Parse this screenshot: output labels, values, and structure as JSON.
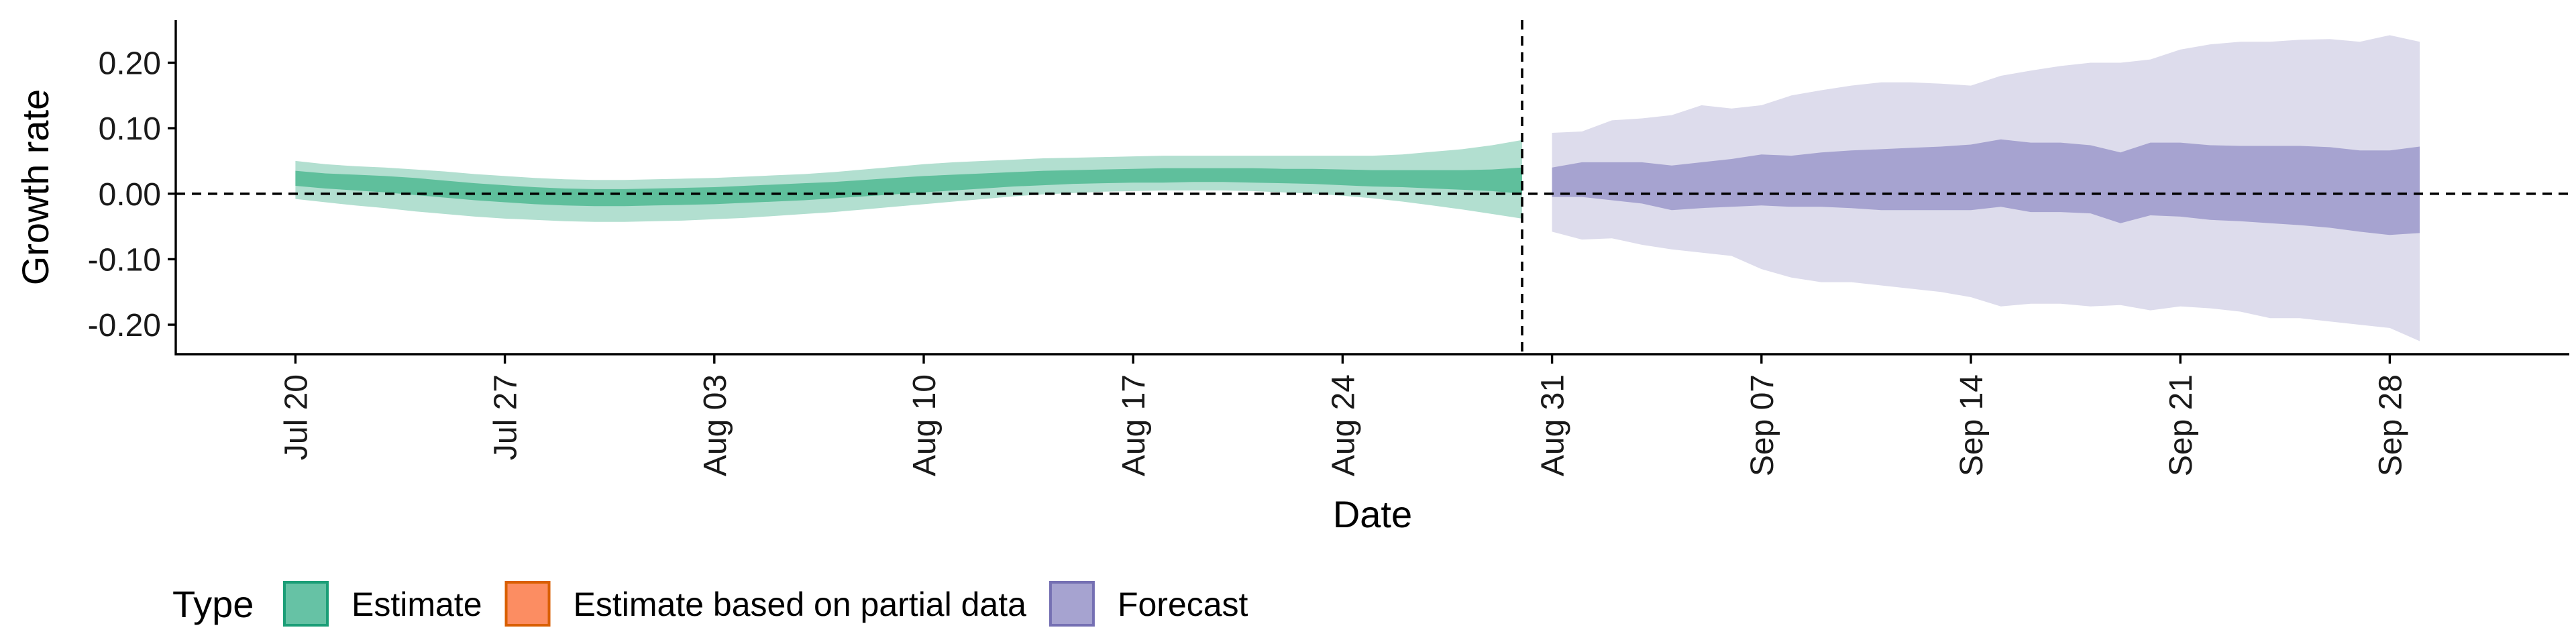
{
  "chart_data": {
    "type": "area",
    "xlabel": "Date",
    "ylabel": "Growth rate",
    "ylim": [
      -0.245,
      0.265
    ],
    "x_ticks": [
      "Jul 20",
      "Jul 27",
      "Aug 03",
      "Aug 10",
      "Aug 17",
      "Aug 24",
      "Aug 31",
      "Sep 07",
      "Sep 14",
      "Sep 21",
      "Sep 28"
    ],
    "x_tick_dates": [
      "2020-07-20",
      "2020-07-27",
      "2020-08-03",
      "2020-08-10",
      "2020-08-17",
      "2020-08-24",
      "2020-08-31",
      "2020-09-07",
      "2020-09-14",
      "2020-09-21",
      "2020-09-28"
    ],
    "x_range": [
      "2020-07-16",
      "2020-10-04"
    ],
    "y_ticks": [
      0.2,
      0.1,
      0.0,
      -0.1,
      -0.2
    ],
    "y_tick_labels": [
      "0.20",
      "0.10",
      "0.00",
      "-0.10",
      "-0.20"
    ],
    "reference_line_y": 0,
    "reference_line_date": "2020-08-30",
    "grid": false,
    "legend_position": "bottom",
    "legend": {
      "title": "Type",
      "items": [
        {
          "label": "Estimate",
          "color": "#66c2a5",
          "border": "#1b9e77"
        },
        {
          "label": "Estimate based on partial data",
          "color": "#fc8d62",
          "border": "#d95f02"
        },
        {
          "label": "Forecast",
          "color": "#a6a3d0",
          "border": "#7570b3"
        }
      ]
    },
    "series": [
      {
        "name": "Estimate",
        "color": "#1b9e77",
        "start_date": "2020-07-20",
        "dates": [
          "Jul 20",
          "Jul 21",
          "Jul 22",
          "Jul 23",
          "Jul 24",
          "Jul 25",
          "Jul 26",
          "Jul 27",
          "Jul 28",
          "Jul 29",
          "Jul 30",
          "Jul 31",
          "Aug 01",
          "Aug 02",
          "Aug 03",
          "Aug 04",
          "Aug 05",
          "Aug 06",
          "Aug 07",
          "Aug 08",
          "Aug 09",
          "Aug 10",
          "Aug 11",
          "Aug 12",
          "Aug 13",
          "Aug 14",
          "Aug 15",
          "Aug 16",
          "Aug 17",
          "Aug 18",
          "Aug 19",
          "Aug 20",
          "Aug 21",
          "Aug 22",
          "Aug 23",
          "Aug 24",
          "Aug 25",
          "Aug 26",
          "Aug 27",
          "Aug 28",
          "Aug 29",
          "Aug 30"
        ],
        "upper_90": [
          0.05,
          0.045,
          0.042,
          0.04,
          0.037,
          0.034,
          0.03,
          0.027,
          0.024,
          0.022,
          0.021,
          0.021,
          0.022,
          0.023,
          0.024,
          0.026,
          0.028,
          0.03,
          0.033,
          0.037,
          0.041,
          0.045,
          0.048,
          0.05,
          0.052,
          0.054,
          0.055,
          0.056,
          0.057,
          0.058,
          0.058,
          0.058,
          0.058,
          0.058,
          0.058,
          0.058,
          0.058,
          0.06,
          0.064,
          0.068,
          0.074,
          0.082
        ],
        "upper_50": [
          0.035,
          0.031,
          0.029,
          0.027,
          0.024,
          0.02,
          0.016,
          0.013,
          0.01,
          0.008,
          0.007,
          0.007,
          0.008,
          0.009,
          0.01,
          0.012,
          0.014,
          0.016,
          0.018,
          0.021,
          0.024,
          0.027,
          0.029,
          0.031,
          0.033,
          0.035,
          0.036,
          0.037,
          0.038,
          0.039,
          0.039,
          0.039,
          0.039,
          0.038,
          0.038,
          0.037,
          0.036,
          0.036,
          0.036,
          0.036,
          0.037,
          0.04
        ],
        "lower_50": [
          0.012,
          0.008,
          0.005,
          0.002,
          -0.002,
          -0.006,
          -0.01,
          -0.013,
          -0.016,
          -0.018,
          -0.019,
          -0.019,
          -0.018,
          -0.017,
          -0.016,
          -0.014,
          -0.012,
          -0.01,
          -0.007,
          -0.004,
          -0.001,
          0.002,
          0.005,
          0.008,
          0.011,
          0.013,
          0.015,
          0.016,
          0.017,
          0.017,
          0.018,
          0.018,
          0.017,
          0.016,
          0.015,
          0.013,
          0.011,
          0.01,
          0.008,
          0.006,
          0.004,
          0.0
        ],
        "lower_90": [
          -0.008,
          -0.013,
          -0.018,
          -0.022,
          -0.027,
          -0.031,
          -0.035,
          -0.038,
          -0.04,
          -0.042,
          -0.043,
          -0.043,
          -0.042,
          -0.041,
          -0.039,
          -0.037,
          -0.034,
          -0.031,
          -0.028,
          -0.024,
          -0.02,
          -0.016,
          -0.012,
          -0.008,
          -0.004,
          -0.001,
          0.001,
          0.003,
          0.004,
          0.005,
          0.005,
          0.005,
          0.004,
          0.002,
          0.0,
          -0.003,
          -0.007,
          -0.012,
          -0.018,
          -0.024,
          -0.031,
          -0.038
        ]
      },
      {
        "name": "Forecast",
        "color": "#7570b3",
        "start_date": "2020-08-31",
        "dates": [
          "Aug 31",
          "Sep 01",
          "Sep 02",
          "Sep 03",
          "Sep 04",
          "Sep 05",
          "Sep 06",
          "Sep 07",
          "Sep 08",
          "Sep 09",
          "Sep 10",
          "Sep 11",
          "Sep 12",
          "Sep 13",
          "Sep 14",
          "Sep 15",
          "Sep 16",
          "Sep 17",
          "Sep 18",
          "Sep 19",
          "Sep 20",
          "Sep 21",
          "Sep 22",
          "Sep 23",
          "Sep 24",
          "Sep 25",
          "Sep 26",
          "Sep 27",
          "Sep 28",
          "Sep 29"
        ],
        "upper_90": [
          0.093,
          0.095,
          0.112,
          0.115,
          0.12,
          0.135,
          0.13,
          0.135,
          0.15,
          0.158,
          0.165,
          0.17,
          0.17,
          0.168,
          0.165,
          0.18,
          0.188,
          0.195,
          0.2,
          0.2,
          0.205,
          0.22,
          0.228,
          0.232,
          0.232,
          0.235,
          0.236,
          0.232,
          0.242,
          0.232
        ],
        "upper_50": [
          0.04,
          0.048,
          0.048,
          0.048,
          0.043,
          0.048,
          0.053,
          0.06,
          0.058,
          0.063,
          0.066,
          0.068,
          0.07,
          0.072,
          0.075,
          0.083,
          0.078,
          0.078,
          0.074,
          0.063,
          0.078,
          0.078,
          0.074,
          0.073,
          0.073,
          0.073,
          0.071,
          0.066,
          0.066,
          0.072
        ],
        "lower_50": [
          -0.005,
          -0.005,
          -0.01,
          -0.015,
          -0.025,
          -0.022,
          -0.02,
          -0.018,
          -0.02,
          -0.02,
          -0.022,
          -0.025,
          -0.025,
          -0.025,
          -0.025,
          -0.02,
          -0.028,
          -0.028,
          -0.03,
          -0.045,
          -0.033,
          -0.035,
          -0.04,
          -0.042,
          -0.045,
          -0.048,
          -0.052,
          -0.058,
          -0.063,
          -0.06
        ],
        "lower_90": [
          -0.058,
          -0.07,
          -0.068,
          -0.078,
          -0.085,
          -0.09,
          -0.095,
          -0.115,
          -0.128,
          -0.135,
          -0.135,
          -0.14,
          -0.145,
          -0.15,
          -0.158,
          -0.172,
          -0.168,
          -0.168,
          -0.172,
          -0.17,
          -0.178,
          -0.172,
          -0.175,
          -0.18,
          -0.19,
          -0.19,
          -0.195,
          -0.2,
          -0.205,
          -0.225
        ]
      }
    ]
  }
}
